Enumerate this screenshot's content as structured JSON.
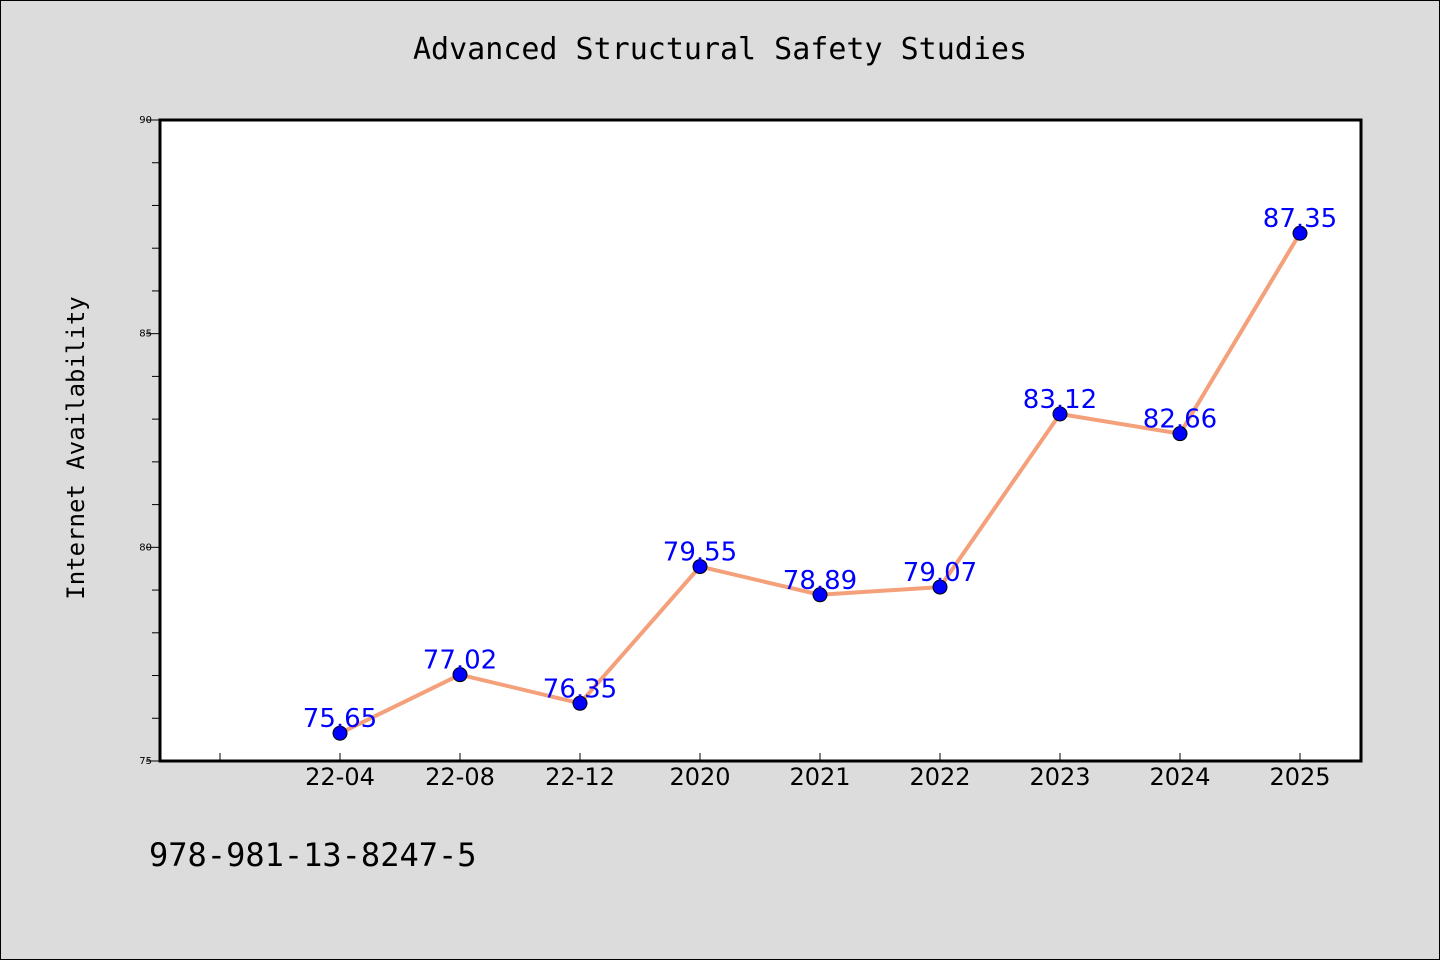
{
  "chart_data": {
    "type": "line",
    "title": "Advanced Structural Safety Studies",
    "xlabel": "",
    "ylabel": "Internet Availability",
    "categories": [
      "22-04",
      "22-08",
      "22-12",
      "2020",
      "2021",
      "2022",
      "2023",
      "2024",
      "2025"
    ],
    "series": [
      {
        "values": [
          75.65,
          77.02,
          76.35,
          79.55,
          78.89,
          79.07,
          83.12,
          82.66,
          87.35
        ],
        "line_color": "#f4a07a",
        "marker_color": "#0000ff"
      }
    ],
    "data_labels": [
      "75.65",
      "77.02",
      "76.35",
      "79.55",
      "78.89",
      "79.07",
      "83.12",
      "82.66",
      "87.35"
    ],
    "data_label_color": "#0000ff",
    "ylim": [
      75,
      90
    ],
    "yticks": [
      75,
      80,
      85,
      90
    ],
    "ytick_labels": [
      "75",
      "80",
      "85",
      "90"
    ],
    "grid": false,
    "legend": "none"
  },
  "footer": {
    "code": "978-981-13-8247-5"
  }
}
